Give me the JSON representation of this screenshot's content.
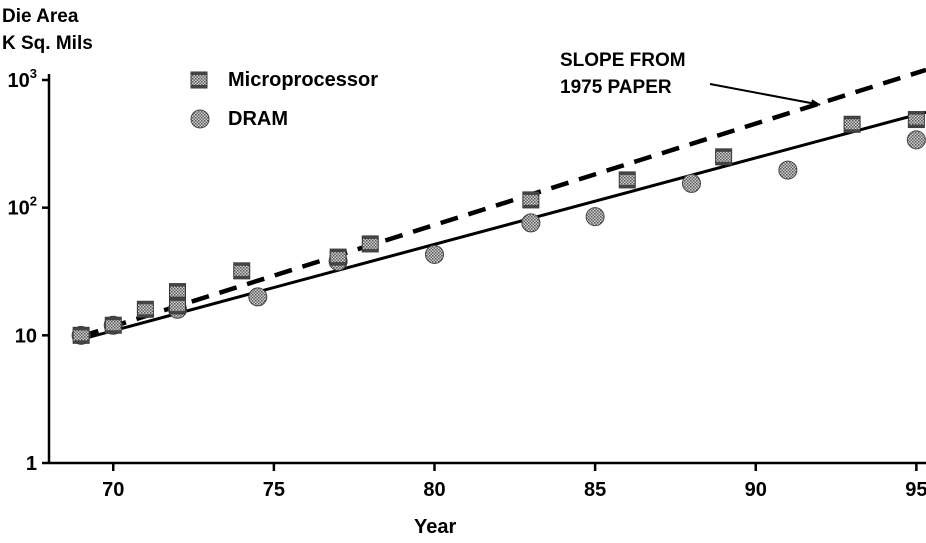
{
  "chart_data": {
    "type": "scatter",
    "ylabel_lines": [
      "Die Area",
      "K Sq. Mils"
    ],
    "xlabel": "Year",
    "x_ticks": [
      70,
      75,
      80,
      85,
      90,
      95
    ],
    "x_tick_labels": [
      "70",
      "75",
      "80",
      "85",
      "90",
      "95"
    ],
    "xlim": [
      68,
      95.3
    ],
    "y_scale": "log",
    "ylim": [
      1,
      1000
    ],
    "y_ticks": [
      1,
      10,
      100,
      1000
    ],
    "y_tick_labels": [
      {
        "base": "1",
        "exp": ""
      },
      {
        "base": "10",
        "exp": ""
      },
      {
        "base": "10",
        "exp": "2"
      },
      {
        "base": "10",
        "exp": "3"
      }
    ],
    "series": [
      {
        "name": "Microprocessor",
        "marker": "square",
        "points": [
          {
            "x": 69,
            "y": 10
          },
          {
            "x": 70,
            "y": 12
          },
          {
            "x": 71,
            "y": 16
          },
          {
            "x": 72,
            "y": 22
          },
          {
            "x": 72,
            "y": 17
          },
          {
            "x": 74,
            "y": 32
          },
          {
            "x": 77,
            "y": 41
          },
          {
            "x": 78,
            "y": 52
          },
          {
            "x": 83,
            "y": 115
          },
          {
            "x": 86,
            "y": 165
          },
          {
            "x": 89,
            "y": 250
          },
          {
            "x": 93,
            "y": 450
          },
          {
            "x": 95,
            "y": 490
          }
        ]
      },
      {
        "name": "DRAM",
        "marker": "circle",
        "points": [
          {
            "x": 69,
            "y": 10
          },
          {
            "x": 70,
            "y": 12
          },
          {
            "x": 72,
            "y": 16
          },
          {
            "x": 74.5,
            "y": 20
          },
          {
            "x": 77,
            "y": 38
          },
          {
            "x": 80,
            "y": 43
          },
          {
            "x": 83,
            "y": 76
          },
          {
            "x": 85,
            "y": 85
          },
          {
            "x": 88,
            "y": 155
          },
          {
            "x": 91,
            "y": 197
          },
          {
            "x": 95,
            "y": 340
          }
        ]
      }
    ],
    "lines": [
      {
        "style": "solid",
        "from": {
          "x": 69,
          "y": 9.3
        },
        "to": {
          "x": 95.3,
          "y": 560
        }
      },
      {
        "style": "dashed",
        "from": {
          "x": 69,
          "y": 9.8
        },
        "to": {
          "x": 95.3,
          "y": 1200
        }
      }
    ],
    "annotation": {
      "lines": [
        "SLOPE FROM",
        "1975 PAPER"
      ],
      "arrow_to": {
        "x": 92,
        "y": 640
      }
    },
    "legend_position": "top-left",
    "grid": false
  }
}
